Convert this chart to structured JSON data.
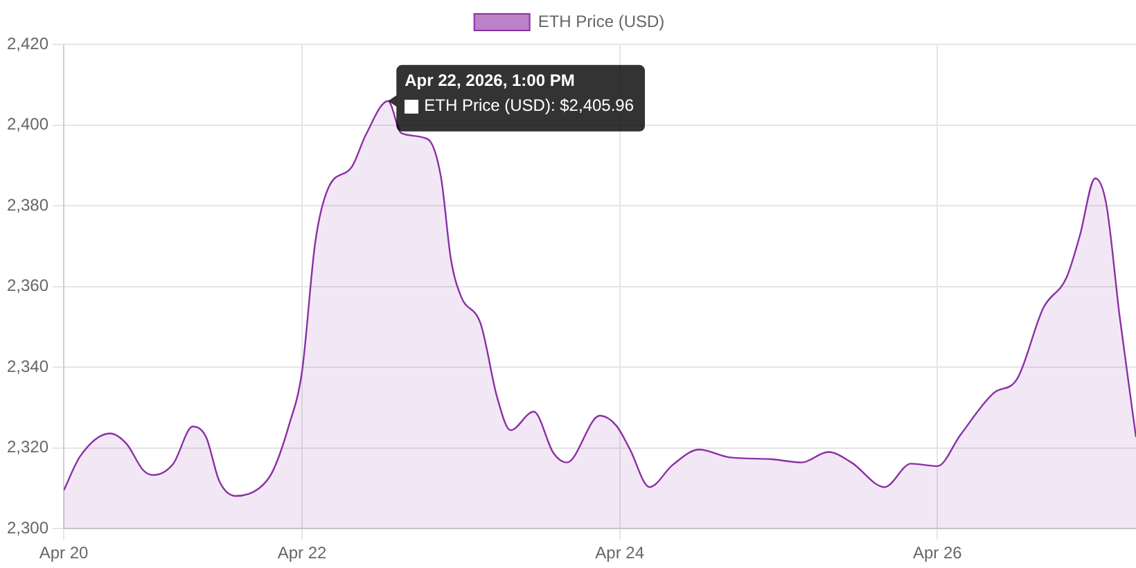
{
  "chart_data": {
    "type": "area",
    "legend": "top",
    "grid": true,
    "marker": "none",
    "x": [
      "2026-04-20T12:00",
      "2026-04-20T14:30",
      "2026-04-20T19:00",
      "2026-04-20T21:30",
      "2026-04-21T00:00",
      "2026-04-21T01:30",
      "2026-04-21T04:30",
      "2026-04-21T07:30",
      "2026-04-21T09:30",
      "2026-04-21T11:30",
      "2026-04-21T14:00",
      "2026-04-21T17:30",
      "2026-04-21T19:30",
      "2026-04-21T22:00",
      "2026-04-22T00:00",
      "2026-04-22T02:00",
      "2026-04-22T04:00",
      "2026-04-22T07:30",
      "2026-04-22T09:40",
      "2026-04-22T13:00",
      "2026-04-22T15:00",
      "2026-04-22T19:00",
      "2026-04-22T21:00",
      "2026-04-22T22:30",
      "2026-04-23T00:00",
      "2026-04-23T03:00",
      "2026-04-23T05:30",
      "2026-04-23T07:30",
      "2026-04-23T11:00",
      "2026-04-23T14:00",
      "2026-04-23T16:00",
      "2026-04-23T21:00",
      "2026-04-23T23:30",
      "2026-04-24T01:30",
      "2026-04-24T04:30",
      "2026-04-24T08:00",
      "2026-04-24T12:00",
      "2026-04-24T16:30",
      "2026-04-24T23:00",
      "2026-04-25T03:30",
      "2026-04-25T07:30",
      "2026-04-25T11:00",
      "2026-04-25T16:00",
      "2026-04-25T20:00",
      "2026-04-26T00:00",
      "2026-04-26T03:30",
      "2026-04-26T08:30",
      "2026-04-26T12:00",
      "2026-04-26T16:00",
      "2026-04-26T19:30",
      "2026-04-26T21:30",
      "2026-04-26T23:50",
      "2026-04-27T01:30",
      "2026-04-27T03:30",
      "2026-04-27T06:00"
    ],
    "series": [
      {
        "name": "ETH Price (USD)",
        "color": "#8b2fa5",
        "values": [
          2309.5,
          2318,
          2323.6,
          2321,
          2314.5,
          2313.3,
          2316,
          2325.3,
          2322.7,
          2311.8,
          2308.1,
          2310,
          2314,
          2325.5,
          2339,
          2371,
          2384.5,
          2389.6,
          2397.7,
          2405.96,
          2398,
          2396.5,
          2387,
          2366.7,
          2357.6,
          2350.7,
          2332.4,
          2324.4,
          2329,
          2318.7,
          2316.4,
          2328,
          2325.5,
          2319.8,
          2310.3,
          2315.8,
          2319.6,
          2317.7,
          2317.2,
          2316.4,
          2319,
          2316.4,
          2310.3,
          2316.1,
          2315.5,
          2323.3,
          2333.6,
          2337,
          2354.7,
          2362.2,
          2372.5,
          2386.8,
          2380.5,
          2353,
          2322.7
        ]
      }
    ],
    "xlim": [
      "2026-04-20T12:00",
      "2026-04-27T06:00"
    ],
    "xticks": [
      {
        "value": "2026-04-20T12:00",
        "label": "Apr 20"
      },
      {
        "value": "2026-04-22T00:00",
        "label": "Apr 22"
      },
      {
        "value": "2026-04-24T00:00",
        "label": "Apr 24"
      },
      {
        "value": "2026-04-26T00:00",
        "label": "Apr 26"
      }
    ],
    "ylim": [
      2300,
      2420
    ],
    "yticks": [
      {
        "value": 2300,
        "label": "2,300"
      },
      {
        "value": 2320,
        "label": "2,320"
      },
      {
        "value": 2340,
        "label": "2,340"
      },
      {
        "value": 2360,
        "label": "2,360"
      },
      {
        "value": 2380,
        "label": "2,380"
      },
      {
        "value": 2400,
        "label": "2,400"
      },
      {
        "value": 2420,
        "label": "2,420"
      }
    ],
    "annotations": [
      {
        "text": "Apr 22, 2026, 1:00 PM",
        "x": "2026-04-22T13:00",
        "y": 2405.96
      },
      {
        "text": "ETH Price (USD): $2,405.96",
        "x": "2026-04-22T13:00",
        "y": 2405.96
      }
    ]
  }
}
